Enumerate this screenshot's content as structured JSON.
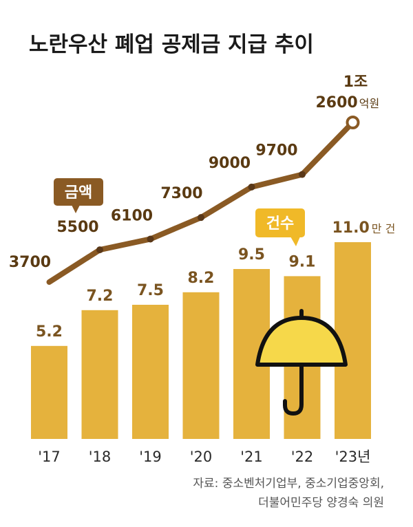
{
  "chart_data": {
    "type": "bar+line",
    "title": "노란우산 폐업 공제금 지급 추이",
    "categories": [
      "'17",
      "'18",
      "'19",
      "'20",
      "'21",
      "'22",
      "'23년"
    ],
    "series": [
      {
        "name": "건수",
        "type": "bar",
        "values": [
          5.2,
          7.2,
          7.5,
          8.2,
          9.5,
          9.1,
          11.0
        ],
        "labels": [
          "5.2",
          "7.2",
          "7.5",
          "8.2",
          "9.5",
          "9.1",
          "11.0"
        ],
        "unit": "만 건"
      },
      {
        "name": "금액",
        "type": "line",
        "values": [
          3700,
          5500,
          6100,
          7300,
          9000,
          9700,
          12600
        ],
        "labels": [
          "3700",
          "5500",
          "6100",
          "7300",
          "9000",
          "9700",
          "2600"
        ],
        "last_prefix": "1조",
        "unit": "억원"
      }
    ],
    "source_line1": "자료: 중소벤처기업부, 중소기업중앙회,",
    "source_line2": "더불어민주당 양경숙 의원"
  },
  "colors": {
    "bar": "#e5b23d",
    "line": "#8a5a24",
    "line_point": "#5a3818",
    "callout_amount_bg": "#8a5a24",
    "callout_count_bg": "#f0b928",
    "umbrella_fill": "#f6d84a",
    "umbrella_stroke": "#111111"
  }
}
